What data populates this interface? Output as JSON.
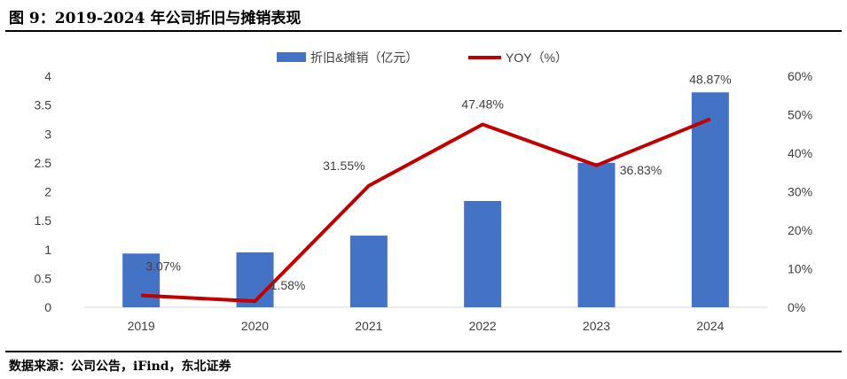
{
  "title": "图 9：2019-2024 年公司折旧与摊销表现",
  "source": "数据来源：公司公告，iFind，东北证券",
  "chart_data": {
    "type": "bar+line",
    "categories": [
      "2019",
      "2020",
      "2021",
      "2022",
      "2023",
      "2024"
    ],
    "series": [
      {
        "name": "折旧&摊销（亿元）",
        "type": "bar",
        "axis": "left",
        "color": "#4472C4",
        "values": [
          0.93,
          0.95,
          1.24,
          1.84,
          2.5,
          3.72
        ]
      },
      {
        "name": "YOY（%）",
        "type": "line",
        "axis": "right",
        "color": "#C00000",
        "values": [
          3.07,
          1.58,
          31.55,
          47.48,
          36.83,
          48.87
        ],
        "labels": [
          "3.07%",
          "1.58%",
          "31.55%",
          "47.48%",
          "36.83%",
          "48.87%"
        ]
      }
    ],
    "left_axis": {
      "ylim": [
        0,
        4
      ],
      "ticks": [
        "0",
        "0.5",
        "1",
        "1.5",
        "2",
        "2.5",
        "3",
        "3.5",
        "4"
      ]
    },
    "right_axis": {
      "ylim": [
        0,
        60
      ],
      "ticks": [
        "0%",
        "10%",
        "20%",
        "30%",
        "40%",
        "50%",
        "60%"
      ]
    },
    "grid": false,
    "legend": "top"
  }
}
